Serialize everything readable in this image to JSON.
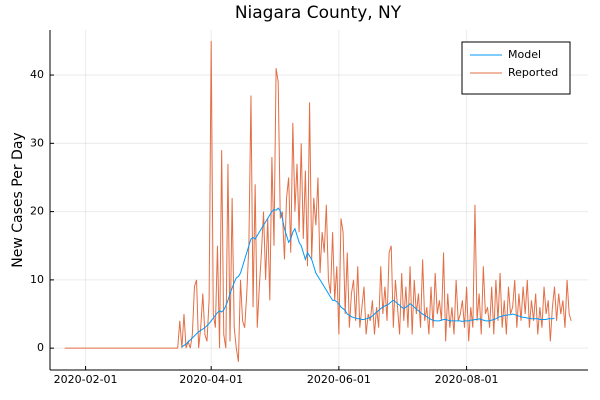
{
  "chart_data": {
    "type": "line",
    "title": "Niagara County, NY",
    "ylabel": "New Cases Per Day",
    "grid": true,
    "legend": "top-right",
    "xlim": [
      "2020-01-15",
      "2020-09-28"
    ],
    "xticks": [
      "2020-02-01",
      "2020-04-01",
      "2020-06-01",
      "2020-08-01"
    ],
    "ylim": [
      -3.2,
      46.6
    ],
    "yticks": [
      0,
      10,
      20,
      30,
      40
    ],
    "x": [
      "2020-01-22",
      "2020-01-23",
      "2020-01-24",
      "2020-01-25",
      "2020-01-26",
      "2020-01-27",
      "2020-01-28",
      "2020-01-29",
      "2020-01-30",
      "2020-01-31",
      "2020-02-01",
      "2020-02-02",
      "2020-02-03",
      "2020-02-04",
      "2020-02-05",
      "2020-02-06",
      "2020-02-07",
      "2020-02-08",
      "2020-02-09",
      "2020-02-10",
      "2020-02-11",
      "2020-02-12",
      "2020-02-13",
      "2020-02-14",
      "2020-02-15",
      "2020-02-16",
      "2020-02-17",
      "2020-02-18",
      "2020-02-19",
      "2020-02-20",
      "2020-02-21",
      "2020-02-22",
      "2020-02-23",
      "2020-02-24",
      "2020-02-25",
      "2020-02-26",
      "2020-02-27",
      "2020-02-28",
      "2020-02-29",
      "2020-03-01",
      "2020-03-02",
      "2020-03-03",
      "2020-03-04",
      "2020-03-05",
      "2020-03-06",
      "2020-03-07",
      "2020-03-08",
      "2020-03-09",
      "2020-03-10",
      "2020-03-11",
      "2020-03-12",
      "2020-03-13",
      "2020-03-14",
      "2020-03-15",
      "2020-03-16",
      "2020-03-17",
      "2020-03-18",
      "2020-03-19",
      "2020-03-20",
      "2020-03-21",
      "2020-03-22",
      "2020-03-23",
      "2020-03-24",
      "2020-03-25",
      "2020-03-26",
      "2020-03-27",
      "2020-03-28",
      "2020-03-29",
      "2020-03-30",
      "2020-03-31",
      "2020-04-01",
      "2020-04-02",
      "2020-04-03",
      "2020-04-04",
      "2020-04-05",
      "2020-04-06",
      "2020-04-07",
      "2020-04-08",
      "2020-04-09",
      "2020-04-10",
      "2020-04-11",
      "2020-04-12",
      "2020-04-13",
      "2020-04-14",
      "2020-04-15",
      "2020-04-16",
      "2020-04-17",
      "2020-04-18",
      "2020-04-19",
      "2020-04-20",
      "2020-04-21",
      "2020-04-22",
      "2020-04-23",
      "2020-04-24",
      "2020-04-25",
      "2020-04-26",
      "2020-04-27",
      "2020-04-28",
      "2020-04-29",
      "2020-04-30",
      "2020-05-01",
      "2020-05-02",
      "2020-05-03",
      "2020-05-04",
      "2020-05-05",
      "2020-05-06",
      "2020-05-07",
      "2020-05-08",
      "2020-05-09",
      "2020-05-10",
      "2020-05-11",
      "2020-05-12",
      "2020-05-13",
      "2020-05-14",
      "2020-05-15",
      "2020-05-16",
      "2020-05-17",
      "2020-05-18",
      "2020-05-19",
      "2020-05-20",
      "2020-05-21",
      "2020-05-22",
      "2020-05-23",
      "2020-05-24",
      "2020-05-25",
      "2020-05-26",
      "2020-05-27",
      "2020-05-28",
      "2020-05-29",
      "2020-05-30",
      "2020-05-31",
      "2020-06-01",
      "2020-06-02",
      "2020-06-03",
      "2020-06-04",
      "2020-06-05",
      "2020-06-06",
      "2020-06-07",
      "2020-06-08",
      "2020-06-09",
      "2020-06-10",
      "2020-06-11",
      "2020-06-12",
      "2020-06-13",
      "2020-06-14",
      "2020-06-15",
      "2020-06-16",
      "2020-06-17",
      "2020-06-18",
      "2020-06-19",
      "2020-06-20",
      "2020-06-21",
      "2020-06-22",
      "2020-06-23",
      "2020-06-24",
      "2020-06-25",
      "2020-06-26",
      "2020-06-27",
      "2020-06-28",
      "2020-06-29",
      "2020-06-30",
      "2020-07-01",
      "2020-07-02",
      "2020-07-03",
      "2020-07-04",
      "2020-07-05",
      "2020-07-06",
      "2020-07-07",
      "2020-07-08",
      "2020-07-09",
      "2020-07-10",
      "2020-07-11",
      "2020-07-12",
      "2020-07-13",
      "2020-07-14",
      "2020-07-15",
      "2020-07-16",
      "2020-07-17",
      "2020-07-18",
      "2020-07-19",
      "2020-07-20",
      "2020-07-21",
      "2020-07-22",
      "2020-07-23",
      "2020-07-24",
      "2020-07-25",
      "2020-07-26",
      "2020-07-27",
      "2020-07-28",
      "2020-07-29",
      "2020-07-30",
      "2020-07-31",
      "2020-08-01",
      "2020-08-02",
      "2020-08-03",
      "2020-08-04",
      "2020-08-05",
      "2020-08-06",
      "2020-08-07",
      "2020-08-08",
      "2020-08-09",
      "2020-08-10",
      "2020-08-11",
      "2020-08-12",
      "2020-08-13",
      "2020-08-14",
      "2020-08-15",
      "2020-08-16",
      "2020-08-17",
      "2020-08-18",
      "2020-08-19",
      "2020-08-20",
      "2020-08-21",
      "2020-08-22",
      "2020-08-23",
      "2020-08-24",
      "2020-08-25",
      "2020-08-26",
      "2020-08-27",
      "2020-08-28",
      "2020-08-29",
      "2020-08-30",
      "2020-08-31",
      "2020-09-01",
      "2020-09-02",
      "2020-09-03",
      "2020-09-04",
      "2020-09-05",
      "2020-09-06",
      "2020-09-07",
      "2020-09-08",
      "2020-09-09",
      "2020-09-10",
      "2020-09-11",
      "2020-09-12",
      "2020-09-13",
      "2020-09-14",
      "2020-09-15",
      "2020-09-16",
      "2020-09-17",
      "2020-09-18",
      "2020-09-19",
      "2020-09-20"
    ],
    "series": [
      {
        "name": "Model",
        "color": "#009af9",
        "values": [
          null,
          null,
          null,
          null,
          null,
          null,
          null,
          null,
          null,
          null,
          null,
          null,
          null,
          null,
          null,
          null,
          null,
          null,
          null,
          null,
          null,
          null,
          null,
          null,
          null,
          null,
          null,
          null,
          null,
          null,
          null,
          null,
          null,
          null,
          null,
          null,
          null,
          null,
          null,
          null,
          null,
          null,
          null,
          null,
          null,
          null,
          null,
          null,
          null,
          null,
          null,
          null,
          null,
          null,
          null,
          null,
          0.2,
          0.4,
          0.6,
          0.9,
          1.2,
          1.5,
          1.8,
          2.1,
          2.4,
          2.6,
          2.8,
          3,
          3.3,
          3.6,
          4,
          4.4,
          4.8,
          5.2,
          5.5,
          5.3,
          5.6,
          6.2,
          7,
          8,
          8.8,
          9.6,
          10.3,
          10.5,
          11,
          12,
          13,
          14,
          15,
          16,
          16.2,
          16,
          16.5,
          17,
          17.5,
          18,
          18.5,
          19,
          19.5,
          20,
          20.3,
          20.2,
          20.5,
          20.1,
          19,
          17.5,
          16.5,
          15.5,
          16,
          17,
          17.5,
          16.5,
          15.5,
          15,
          14,
          13,
          14,
          13.5,
          13,
          12,
          11,
          10.5,
          10,
          9.5,
          9,
          8.5,
          8,
          7.5,
          7,
          7,
          6.8,
          6.5,
          6,
          5.8,
          5.5,
          5,
          4.8,
          4.6,
          4.5,
          4.4,
          4.3,
          4.3,
          4.2,
          4.2,
          4.3,
          4.4,
          4.5,
          4.7,
          5,
          5.3,
          5.5,
          5.8,
          6,
          6.2,
          6.3,
          6.5,
          6.8,
          7,
          6.8,
          6.5,
          6.3,
          6,
          5.8,
          6,
          6.2,
          6.5,
          6.3,
          6,
          5.7,
          5.5,
          5.2,
          5,
          4.8,
          4.6,
          4.4,
          4.2,
          4.1,
          4,
          4,
          4,
          4.1,
          4.2,
          4.2,
          4.1,
          4,
          4,
          4,
          4,
          4,
          4,
          3.9,
          4,
          4,
          4,
          4.1,
          4.1,
          4.2,
          4.2,
          4.3,
          4.2,
          4.1,
          4,
          4,
          4,
          4.1,
          4.2,
          4.3,
          4.5,
          4.6,
          4.7,
          4.8,
          4.8,
          4.9,
          4.9,
          5,
          4.9,
          4.8,
          4.7,
          4.6,
          4.5,
          4.5,
          4.4,
          4.4,
          4.3,
          4.3,
          4.3,
          4.3,
          4.2,
          4.2,
          4.2,
          4.2,
          4.3,
          4.3,
          4.3,
          4.4,
          null,
          null,
          null,
          null,
          null,
          null,
          null,
          null
        ]
      },
      {
        "name": "Reported",
        "color": "#e26f46",
        "values": [
          0,
          0,
          0,
          0,
          0,
          0,
          0,
          0,
          0,
          0,
          0,
          0,
          0,
          0,
          0,
          0,
          0,
          0,
          0,
          0,
          0,
          0,
          0,
          0,
          0,
          0,
          0,
          0,
          0,
          0,
          0,
          0,
          0,
          0,
          0,
          0,
          0,
          0,
          0,
          0,
          0,
          0,
          0,
          0,
          0,
          0,
          0,
          0,
          0,
          0,
          0,
          0,
          0,
          0,
          0,
          4,
          0,
          5,
          0,
          1,
          0,
          2,
          9,
          10,
          0,
          3,
          8,
          2,
          1,
          7,
          45,
          5,
          3,
          15,
          0,
          29,
          2,
          0,
          27,
          1,
          22,
          3,
          0,
          -2,
          10,
          4,
          3,
          8,
          15,
          37,
          6,
          24,
          3,
          9,
          14,
          20,
          10,
          19,
          7,
          28,
          15,
          41,
          39,
          19,
          20,
          13,
          22,
          25,
          14,
          33,
          20,
          27,
          17,
          30,
          16,
          26,
          12,
          36,
          13,
          22,
          18,
          25,
          11,
          17,
          14,
          21,
          10,
          8,
          17,
          7,
          12,
          2,
          19,
          17,
          5,
          14,
          3,
          8,
          10,
          4,
          12,
          3,
          6,
          9,
          2,
          5,
          4,
          7,
          2,
          6,
          3,
          12,
          5,
          9,
          4,
          14,
          15,
          3,
          10,
          6,
          2,
          11,
          4,
          9,
          3,
          12,
          2,
          10,
          5,
          8,
          3,
          13,
          4,
          6,
          2,
          9,
          3,
          11,
          5,
          7,
          4,
          14,
          1,
          8,
          3,
          6,
          2,
          10,
          4,
          5,
          7,
          3,
          9,
          1,
          6,
          3,
          21,
          4,
          8,
          2,
          12,
          5,
          6,
          3,
          9,
          2,
          10,
          4,
          11,
          3,
          7,
          2,
          9,
          5,
          6,
          10,
          3,
          8,
          4,
          9,
          5,
          10,
          3,
          7,
          4,
          8,
          2,
          6,
          3,
          9,
          5,
          7,
          1,
          6,
          9,
          4,
          8,
          5,
          7,
          3,
          10,
          5,
          4
        ]
      }
    ]
  }
}
